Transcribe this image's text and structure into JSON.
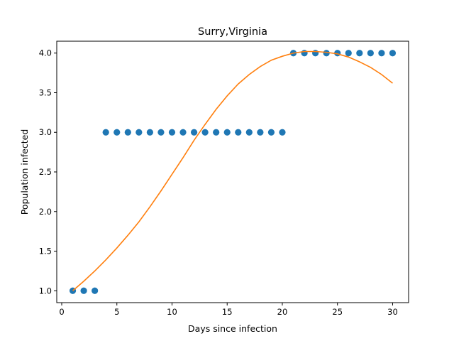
{
  "chart_data": {
    "type": "scatter",
    "title": "Surry,Virginia",
    "xlabel": "Days since infection",
    "ylabel": "Population infected",
    "xlim": [
      -0.45,
      31.45
    ],
    "ylim": [
      0.85,
      4.15
    ],
    "xticks": [
      0,
      5,
      10,
      15,
      20,
      25,
      30
    ],
    "yticks": [
      1.0,
      1.5,
      2.0,
      2.5,
      3.0,
      3.5,
      4.0
    ],
    "grid": false,
    "series": [
      {
        "type": "scatter",
        "color": "#1f77b4",
        "x": [
          1,
          2,
          3,
          4,
          5,
          6,
          7,
          8,
          9,
          10,
          11,
          12,
          13,
          14,
          15,
          16,
          17,
          18,
          19,
          20,
          21,
          22,
          23,
          24,
          25,
          26,
          27,
          28,
          29,
          30
        ],
        "y": [
          1,
          1,
          1,
          3,
          3,
          3,
          3,
          3,
          3,
          3,
          3,
          3,
          3,
          3,
          3,
          3,
          3,
          3,
          3,
          3,
          4,
          4,
          4,
          4,
          4,
          4,
          4,
          4,
          4,
          4
        ]
      },
      {
        "type": "line",
        "color": "#ff7f0e",
        "x": [
          1,
          2,
          3,
          4,
          5,
          6,
          7,
          8,
          9,
          10,
          11,
          12,
          13,
          14,
          15,
          16,
          17,
          18,
          19,
          20,
          21,
          22,
          23,
          24,
          25,
          26,
          27,
          28,
          29,
          30
        ],
        "y": [
          1.0,
          1.12,
          1.25,
          1.39,
          1.54,
          1.7,
          1.87,
          2.06,
          2.26,
          2.47,
          2.68,
          2.9,
          3.1,
          3.29,
          3.46,
          3.61,
          3.73,
          3.83,
          3.91,
          3.96,
          4.0,
          4.02,
          4.02,
          4.01,
          3.99,
          3.95,
          3.89,
          3.82,
          3.73,
          3.62
        ]
      }
    ]
  }
}
